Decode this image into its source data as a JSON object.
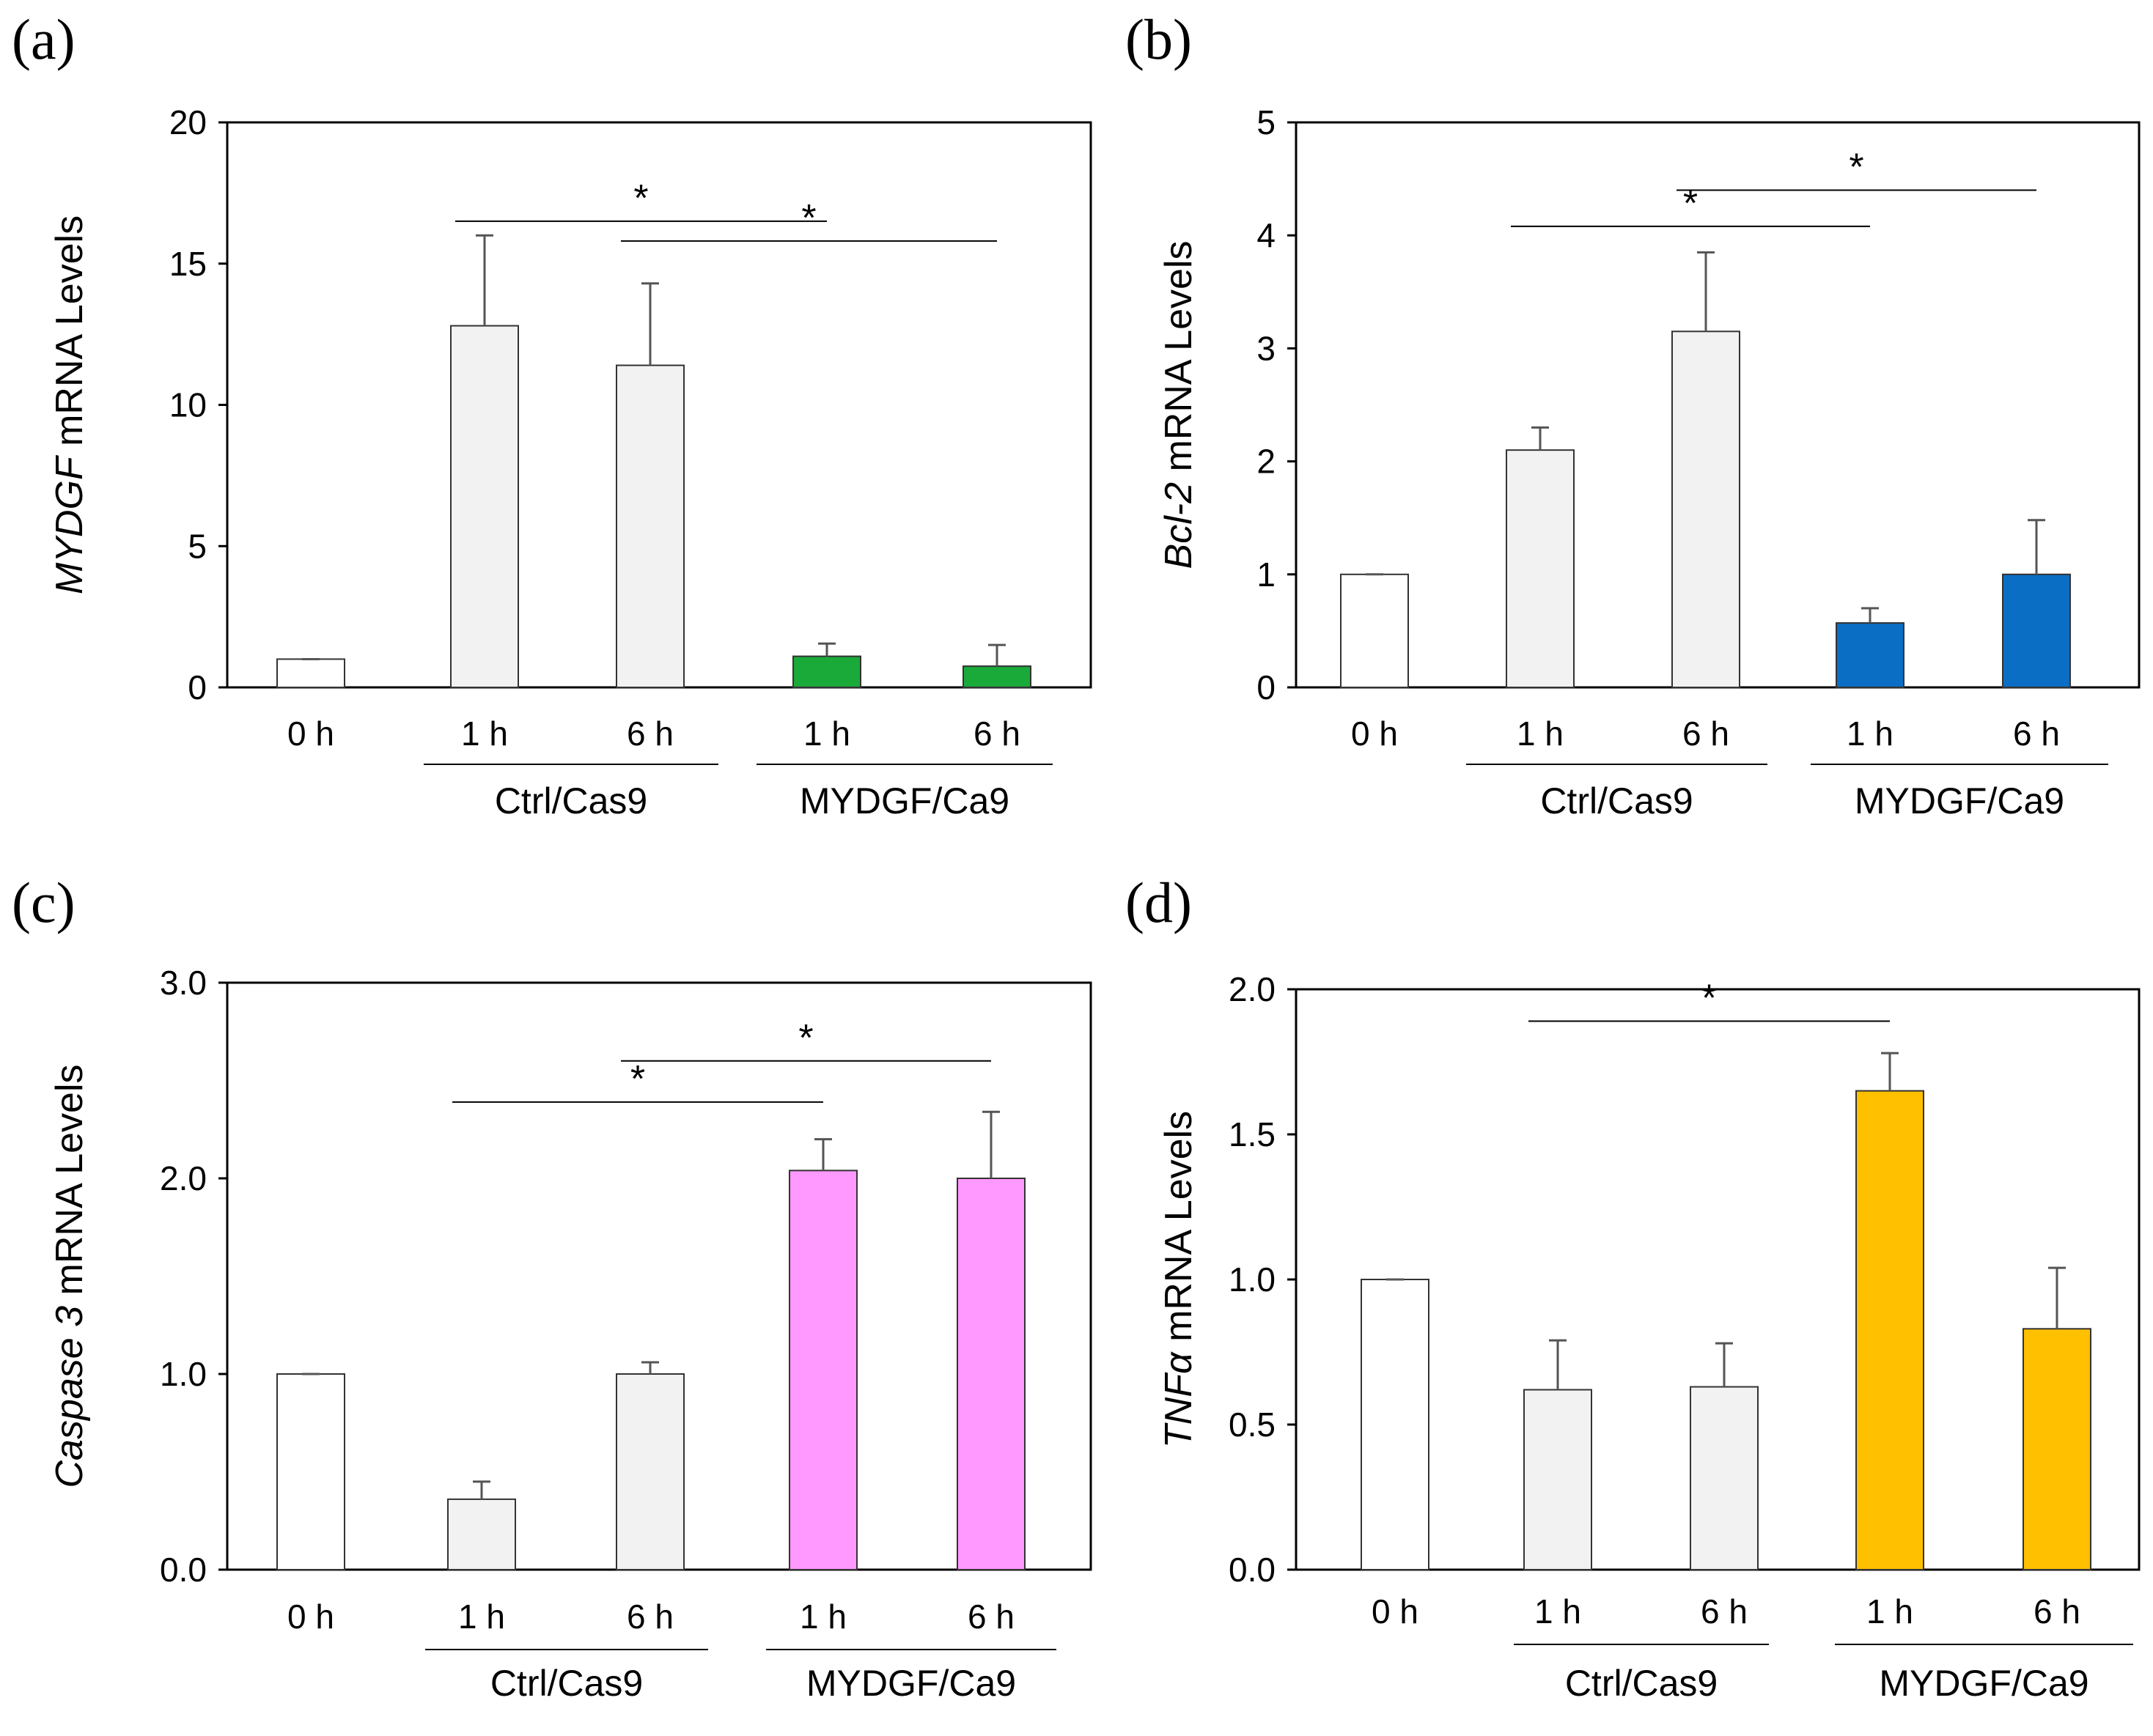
{
  "chart_data": [
    {
      "type": "bar",
      "panel": "(a)",
      "ylabel_italic": "MYDGF",
      "ylabel_rest": " mRNA Levels",
      "ylim": [
        0,
        20
      ],
      "yticks": [
        "0",
        "5",
        "10",
        "15",
        "20"
      ],
      "ytick_values": [
        0,
        5,
        10,
        15,
        20
      ],
      "categories": [
        "0 h",
        "1 h",
        "6 h",
        "1 h",
        "6 h"
      ],
      "values": [
        1.0,
        12.8,
        11.4,
        1.1,
        0.75
      ],
      "errors": [
        0.0,
        3.2,
        2.9,
        0.45,
        0.75
      ],
      "colors": [
        "#ffffff",
        "#f2f2f2",
        "#f2f2f2",
        "#1aaa3a",
        "#1aaa3a"
      ],
      "groups": [
        {
          "label": "Ctrl/Cas9",
          "from": 1,
          "to": 2
        },
        {
          "label": "MYDGF/Ca9",
          "from": 3,
          "to": 4
        }
      ],
      "significance": [
        {
          "from": 1,
          "to": 3,
          "level": 16.5,
          "label": "*"
        },
        {
          "from": 2,
          "to": 4,
          "level": 15.8,
          "label": "*"
        }
      ]
    },
    {
      "type": "bar",
      "panel": "(b)",
      "ylabel_italic": "Bcl-2",
      "ylabel_rest": " mRNA Levels",
      "ylim": [
        0,
        5
      ],
      "yticks": [
        "0",
        "1",
        "2",
        "3",
        "4",
        "5"
      ],
      "ytick_values": [
        0,
        1,
        2,
        3,
        4,
        5
      ],
      "categories": [
        "0 h",
        "1 h",
        "6 h",
        "1 h",
        "6 h"
      ],
      "values": [
        1.0,
        2.1,
        3.15,
        0.57,
        1.0
      ],
      "errors": [
        0.0,
        0.2,
        0.7,
        0.13,
        0.48
      ],
      "colors": [
        "#ffffff",
        "#f2f2f2",
        "#f2f2f2",
        "#0a6ec4",
        "#0a6ec4"
      ],
      "groups": [
        {
          "label": "Ctrl/Cas9",
          "from": 1,
          "to": 2
        },
        {
          "label": "MYDGF/Ca9",
          "from": 3,
          "to": 4
        }
      ],
      "significance": [
        {
          "from": 1,
          "to": 3,
          "level": 4.08,
          "label": "*"
        },
        {
          "from": 2,
          "to": 4,
          "level": 4.4,
          "label": "*"
        }
      ]
    },
    {
      "type": "bar",
      "panel": "(c)",
      "ylabel_italic": "Caspase 3",
      "ylabel_rest": " mRNA Levels",
      "ylim": [
        0,
        3
      ],
      "yticks": [
        "0.0",
        "1.0",
        "2.0",
        "3.0"
      ],
      "ytick_values": [
        0,
        1,
        2,
        3
      ],
      "categories": [
        "0 h",
        "1 h",
        "6 h",
        "1 h",
        "6 h"
      ],
      "values": [
        1.0,
        0.36,
        1.0,
        2.04,
        2.0
      ],
      "errors": [
        0.0,
        0.09,
        0.06,
        0.16,
        0.34
      ],
      "colors": [
        "#ffffff",
        "#f2f2f2",
        "#f2f2f2",
        "#ff99ff",
        "#ff99ff"
      ],
      "groups": [
        {
          "label": "Ctrl/Cas9",
          "from": 1,
          "to": 2
        },
        {
          "label": "MYDGF/Ca9",
          "from": 3,
          "to": 4
        }
      ],
      "significance": [
        {
          "from": 1,
          "to": 3,
          "level": 2.39,
          "label": "*"
        },
        {
          "from": 2,
          "to": 4,
          "level": 2.6,
          "label": "*"
        }
      ]
    },
    {
      "type": "bar",
      "panel": "(d)",
      "ylabel_italic": "TNFα",
      "ylabel_rest": " mRNA Levels",
      "ylim": [
        0,
        2
      ],
      "yticks": [
        "0.0",
        "0.5",
        "1.0",
        "1.5",
        "2.0"
      ],
      "ytick_values": [
        0,
        0.5,
        1.0,
        1.5,
        2.0
      ],
      "categories": [
        "0 h",
        "1 h",
        "6 h",
        "1 h",
        "6 h"
      ],
      "values": [
        1.0,
        0.62,
        0.63,
        1.65,
        0.83
      ],
      "errors": [
        0.0,
        0.17,
        0.15,
        0.13,
        0.21
      ],
      "colors": [
        "#ffffff",
        "#f2f2f2",
        "#f2f2f2",
        "#ffc000",
        "#ffc000"
      ],
      "groups": [
        {
          "label": "Ctrl/Cas9",
          "from": 1,
          "to": 2
        },
        {
          "label": "MYDGF/Ca9",
          "from": 3,
          "to": 4
        }
      ],
      "significance": [
        {
          "from": 1,
          "to": 3,
          "level": 1.89,
          "label": "*"
        }
      ]
    }
  ]
}
